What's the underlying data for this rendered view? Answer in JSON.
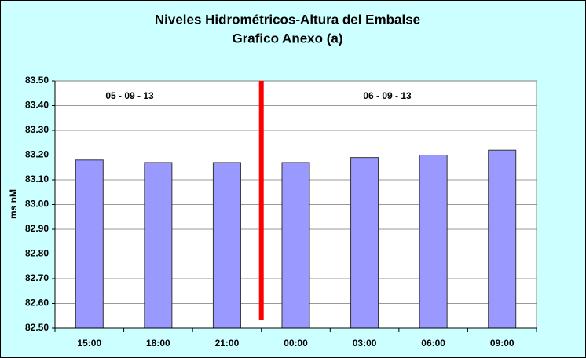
{
  "chart_data": {
    "type": "bar",
    "title": "Niveles Hidrométricos-Altura del Embalse",
    "subtitle": "Grafico Anexo (a)",
    "y_label": "ms nM",
    "annotations": [
      "05 - 09 - 13",
      "06 - 09 - 13"
    ],
    "categories": [
      "15:00",
      "18:00",
      "21:00",
      "00:00",
      "03:00",
      "06:00",
      "09:00"
    ],
    "values": [
      83.18,
      83.17,
      83.17,
      83.17,
      83.19,
      83.2,
      83.22
    ],
    "color": "#9999ff",
    "ylim": [
      82.5,
      83.5
    ],
    "yticks": [
      {
        "value": 82.5,
        "label": "82.50"
      },
      {
        "value": 82.6,
        "label": "82.60"
      },
      {
        "value": 82.7,
        "label": "82.70"
      },
      {
        "value": 82.8,
        "label": "82.80"
      },
      {
        "value": 82.9,
        "label": "82.90"
      },
      {
        "value": 83.0,
        "label": "83.00"
      },
      {
        "value": 83.1,
        "label": "83.10"
      },
      {
        "value": 83.2,
        "label": "83.20"
      },
      {
        "value": 83.3,
        "label": "83.30"
      },
      {
        "value": 83.4,
        "label": "83.40"
      },
      {
        "value": 83.5,
        "label": "83.50"
      }
    ],
    "grid": true
  }
}
